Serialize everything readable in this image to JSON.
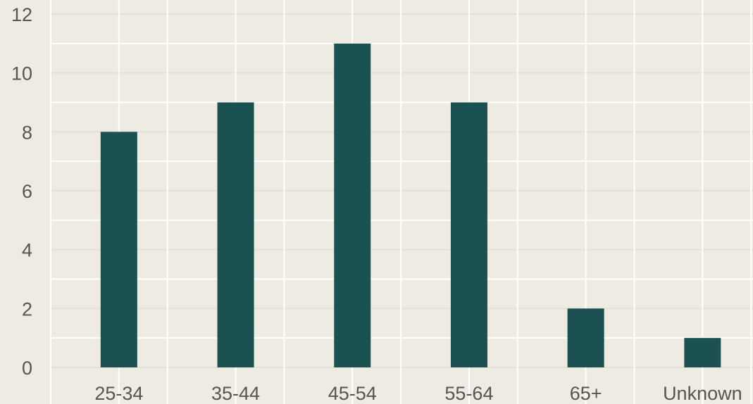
{
  "chart_data": {
    "type": "bar",
    "title": "",
    "xlabel": "",
    "ylabel": "",
    "categories": [
      "25-34",
      "35-44",
      "45-54",
      "55-64",
      "65+",
      "Unknown"
    ],
    "values": [
      8,
      9,
      11,
      9,
      2,
      1
    ],
    "ylim": [
      0,
      12
    ],
    "yticks": [
      "0",
      "2",
      "4",
      "6",
      "8",
      "10",
      "12"
    ],
    "grid": true,
    "legend": "none",
    "colors": {
      "background": "#eeebe3",
      "bar": "#1c5152",
      "grid": "#ffffff",
      "tick_text": "#555555"
    }
  }
}
